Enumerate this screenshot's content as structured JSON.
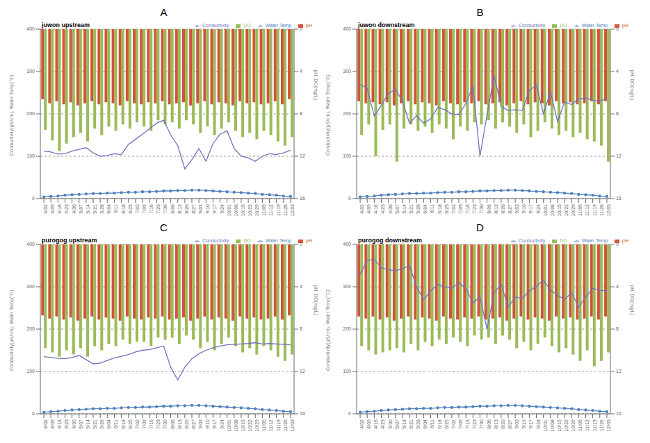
{
  "chart_data": [
    {
      "panel": "A",
      "type": "bar",
      "title": "juwon upstream",
      "ylabel": "Conductivity(µS/cm), Water Temp(°C)",
      "y2label": "pH, DO(mg/L)",
      "categories": [
        "4/02",
        "4/09",
        "4/16",
        "4/23",
        "4/30",
        "5/07",
        "5/14",
        "5/21",
        "5/28",
        "6/04",
        "6/11",
        "6/18",
        "6/25",
        "7/02",
        "7/09",
        "7/16",
        "7/23",
        "7/30",
        "8/06",
        "8/13",
        "8/20",
        "8/27",
        "9/03",
        "9/10",
        "9/17",
        "9/24",
        "10/01",
        "10/08",
        "10/15",
        "10/22",
        "10/29",
        "11/05",
        "11/12",
        "11/19",
        "11/26",
        "12/03"
      ],
      "ylim": [
        0,
        400
      ],
      "yticks": [
        0,
        100,
        200,
        300,
        400
      ],
      "y2lim": [
        0,
        16
      ],
      "y2ticks": [
        0,
        4,
        8,
        12,
        16
      ],
      "grid": true,
      "legend": "top-right",
      "series": [
        {
          "name": "pH",
          "type": "bar",
          "axis": "y2",
          "color": "#d2533b",
          "values": [
            6.6,
            7.0,
            6.8,
            7.1,
            6.9,
            7.2,
            7.0,
            6.8,
            7.1,
            6.9,
            7.0,
            7.2,
            6.8,
            7.0,
            7.1,
            6.9,
            7.0,
            6.8,
            7.1,
            7.0,
            6.9,
            7.2,
            7.0,
            6.8,
            7.1,
            6.9,
            7.0,
            7.2,
            6.8,
            7.0,
            6.9,
            7.1,
            7.0,
            6.8,
            7.1,
            6.6
          ]
        },
        {
          "name": "DO",
          "type": "bar",
          "axis": "y2",
          "color": "#9bbb59",
          "values": [
            9.5,
            10.5,
            11.5,
            10.8,
            10.2,
            9.8,
            10.6,
            9.4,
            10.0,
            9.2,
            9.6,
            9.0,
            9.4,
            8.8,
            9.2,
            9.6,
            8.6,
            9.0,
            8.8,
            9.4,
            8.6,
            9.0,
            9.8,
            9.2,
            10.0,
            9.4,
            8.8,
            9.6,
            10.2,
            9.8,
            10.4,
            9.6,
            10.0,
            10.6,
            11.0,
            10.2
          ]
        },
        {
          "name": "Water Temp",
          "type": "line",
          "color": "#4f81bd",
          "marker": "circle",
          "values": [
            4,
            5,
            6,
            8,
            9,
            10,
            11,
            12,
            12,
            13,
            13,
            14,
            15,
            15,
            16,
            16,
            17,
            18,
            18,
            19,
            19,
            20,
            20,
            19,
            18,
            17,
            16,
            15,
            14,
            13,
            12,
            10,
            9,
            8,
            6,
            5
          ]
        },
        {
          "name": "Conductivity",
          "type": "line",
          "color": "#7070c0",
          "marker": "none",
          "values": [
            112,
            110,
            105,
            106,
            112,
            116,
            120,
            108,
            100,
            102,
            106,
            104,
            128,
            140,
            152,
            165,
            178,
            185,
            150,
            125,
            70,
            92,
            118,
            88,
            130,
            152,
            160,
            118,
            100,
            96,
            88,
            100,
            106,
            104,
            108,
            114
          ]
        }
      ]
    },
    {
      "panel": "B",
      "type": "bar",
      "title": "juwon downstream",
      "ylabel": "Conductivity(µS/cm), Water Temp(°C)",
      "y2label": "pH, DO(mg/L)",
      "categories": [
        "4/02",
        "4/09",
        "4/16",
        "4/23",
        "4/30",
        "5/07",
        "5/14",
        "5/21",
        "5/28",
        "6/04",
        "6/11",
        "6/18",
        "6/25",
        "7/02",
        "7/09",
        "7/16",
        "7/23",
        "7/30",
        "8/06",
        "8/13",
        "8/20",
        "8/27",
        "9/03",
        "9/10",
        "9/17",
        "9/24",
        "10/01",
        "10/08",
        "10/15",
        "10/22",
        "10/29",
        "11/05",
        "11/12",
        "11/19",
        "11/26",
        "12/03"
      ],
      "ylim": [
        0,
        400
      ],
      "yticks": [
        0,
        100,
        200,
        300,
        400
      ],
      "y2lim": [
        0,
        16
      ],
      "y2ticks": [
        0,
        4,
        8,
        12,
        16
      ],
      "grid": true,
      "legend": "top-right",
      "series": [
        {
          "name": "pH",
          "type": "bar",
          "axis": "y2",
          "color": "#d2533b",
          "values": [
            6.8,
            7.0,
            6.9,
            7.1,
            6.9,
            7.2,
            7.0,
            6.8,
            7.1,
            6.9,
            7.0,
            7.2,
            6.8,
            7.0,
            7.1,
            6.9,
            7.0,
            6.8,
            7.1,
            7.0,
            6.9,
            7.2,
            7.0,
            6.8,
            7.1,
            6.9,
            7.0,
            7.2,
            6.8,
            7.0,
            6.9,
            7.1,
            7.0,
            6.8,
            7.1,
            6.8
          ]
        },
        {
          "name": "DO",
          "type": "bar",
          "axis": "y2",
          "color": "#9bbb59",
          "values": [
            10.0,
            9.0,
            12.0,
            9.5,
            9.0,
            12.5,
            9.4,
            9.0,
            9.6,
            9.2,
            9.8,
            9.0,
            9.4,
            10.4,
            9.2,
            9.6,
            8.8,
            9.0,
            8.6,
            9.4,
            8.8,
            9.2,
            9.8,
            9.0,
            10.2,
            9.6,
            8.8,
            9.4,
            10.0,
            9.6,
            10.2,
            9.8,
            10.4,
            10.6,
            11.0,
            12.5
          ]
        },
        {
          "name": "Water Temp",
          "type": "line",
          "color": "#4f81bd",
          "marker": "circle",
          "values": [
            4,
            5,
            6,
            8,
            9,
            10,
            11,
            12,
            12,
            13,
            13,
            14,
            15,
            15,
            16,
            16,
            17,
            18,
            18,
            19,
            19,
            20,
            20,
            19,
            18,
            17,
            16,
            15,
            14,
            13,
            12,
            10,
            9,
            8,
            6,
            5
          ]
        },
        {
          "name": "Conductivity",
          "type": "line",
          "color": "#7070c0",
          "marker": "none",
          "values": [
            270,
            260,
            195,
            220,
            248,
            258,
            230,
            178,
            196,
            178,
            188,
            215,
            210,
            200,
            198,
            225,
            265,
            100,
            198,
            290,
            218,
            208,
            210,
            208,
            255,
            268,
            200,
            252,
            182,
            228,
            222,
            235,
            238,
            232,
            230,
            236
          ]
        }
      ]
    },
    {
      "panel": "C",
      "type": "bar",
      "title": "purogog upstream",
      "ylabel": "Conductivity(µS/cm), Water Temp(°C)",
      "y2label": "pH, DO(mg/L)",
      "categories": [
        "4/02",
        "4/09",
        "4/16",
        "4/23",
        "4/30",
        "5/07",
        "5/14",
        "5/21",
        "5/28",
        "6/04",
        "6/11",
        "6/18",
        "6/25",
        "7/02",
        "7/09",
        "7/16",
        "7/23",
        "7/30",
        "8/06",
        "8/13",
        "8/20",
        "8/27",
        "9/03",
        "9/10",
        "9/17",
        "9/24",
        "10/01",
        "10/08",
        "10/15",
        "10/22",
        "10/29",
        "11/05",
        "11/12",
        "11/19",
        "11/26",
        "12/03"
      ],
      "ylim": [
        0,
        400
      ],
      "yticks": [
        0,
        100,
        200,
        300,
        400
      ],
      "y2lim": [
        0,
        16
      ],
      "y2ticks": [
        0,
        4,
        8,
        12,
        16
      ],
      "grid": true,
      "legend": "top-right",
      "series": [
        {
          "name": "pH",
          "type": "bar",
          "axis": "y2",
          "color": "#d2533b",
          "values": [
            6.7,
            7.0,
            6.8,
            7.1,
            6.9,
            7.2,
            7.0,
            6.8,
            7.1,
            6.9,
            7.0,
            7.2,
            6.8,
            7.0,
            7.1,
            6.9,
            7.0,
            6.8,
            7.1,
            7.0,
            6.9,
            7.2,
            7.0,
            6.8,
            7.1,
            6.9,
            7.0,
            7.2,
            6.8,
            7.0,
            6.9,
            7.1,
            7.0,
            6.8,
            7.1,
            6.7
          ]
        },
        {
          "name": "DO",
          "type": "bar",
          "axis": "y2",
          "color": "#9bbb59",
          "values": [
            9.8,
            10.2,
            10.6,
            10.0,
            10.4,
            9.8,
            10.6,
            9.6,
            10.0,
            9.4,
            9.6,
            9.0,
            9.4,
            9.2,
            9.2,
            9.6,
            8.8,
            9.0,
            8.8,
            9.4,
            8.6,
            9.0,
            9.8,
            9.2,
            10.0,
            9.4,
            8.8,
            9.6,
            10.2,
            9.8,
            10.4,
            9.6,
            10.0,
            10.6,
            11.0,
            10.4
          ]
        },
        {
          "name": "Water Temp",
          "type": "line",
          "color": "#4f81bd",
          "marker": "circle",
          "values": [
            4,
            5,
            6,
            8,
            9,
            10,
            11,
            12,
            12,
            13,
            13,
            14,
            15,
            15,
            16,
            16,
            17,
            18,
            18,
            19,
            19,
            20,
            20,
            19,
            18,
            17,
            16,
            15,
            14,
            13,
            12,
            10,
            9,
            8,
            6,
            5
          ]
        },
        {
          "name": "Conductivity",
          "type": "line",
          "color": "#7070c0",
          "marker": "none",
          "values": [
            135,
            133,
            131,
            130,
            133,
            138,
            128,
            118,
            120,
            126,
            132,
            136,
            140,
            146,
            150,
            152,
            156,
            160,
            110,
            80,
            110,
            130,
            142,
            150,
            156,
            160,
            163,
            164,
            165,
            166,
            168,
            165,
            166,
            165,
            164,
            163
          ]
        }
      ]
    },
    {
      "panel": "D",
      "type": "bar",
      "title": "purogog downstream",
      "ylabel": "Conductivity(µS/cm), Water Temp(°C)",
      "y2label": "pH, DO(mg/L)",
      "categories": [
        "4/02",
        "4/09",
        "4/16",
        "4/23",
        "4/30",
        "5/07",
        "5/14",
        "5/21",
        "5/28",
        "6/04",
        "6/11",
        "6/18",
        "6/25",
        "7/02",
        "7/09",
        "7/16",
        "7/23",
        "7/30",
        "8/06",
        "8/13",
        "8/20",
        "8/27",
        "9/03",
        "9/10",
        "9/17",
        "9/24",
        "10/01",
        "10/08",
        "10/15",
        "10/22",
        "10/29",
        "11/05",
        "11/12",
        "11/19",
        "11/26",
        "12/03"
      ],
      "ylim": [
        0,
        400
      ],
      "yticks": [
        0,
        100,
        200,
        300,
        400
      ],
      "y2lim": [
        0,
        16
      ],
      "y2ticks": [
        0,
        4,
        8,
        12,
        16
      ],
      "grid": true,
      "legend": "top-right",
      "series": [
        {
          "name": "pH",
          "type": "bar",
          "axis": "y2",
          "color": "#d2533b",
          "values": [
            6.8,
            7.0,
            6.8,
            7.1,
            6.9,
            7.2,
            7.0,
            6.8,
            7.1,
            6.9,
            7.0,
            7.2,
            6.8,
            7.0,
            7.1,
            6.9,
            7.0,
            6.8,
            7.1,
            7.0,
            6.9,
            7.2,
            7.0,
            6.8,
            7.1,
            6.9,
            7.0,
            7.2,
            6.8,
            7.0,
            6.9,
            7.1,
            7.0,
            6.8,
            7.1,
            6.8
          ]
        },
        {
          "name": "DO",
          "type": "bar",
          "axis": "y2",
          "color": "#9bbb59",
          "values": [
            9.6,
            10.0,
            10.4,
            10.2,
            10.0,
            9.8,
            10.2,
            9.4,
            10.0,
            9.2,
            9.6,
            9.0,
            9.4,
            8.8,
            9.2,
            9.6,
            8.6,
            9.0,
            8.8,
            9.4,
            8.6,
            9.0,
            9.8,
            9.2,
            10.0,
            9.4,
            8.8,
            9.6,
            10.2,
            9.8,
            10.4,
            11.0,
            10.0,
            11.5,
            11.0,
            10.2
          ]
        },
        {
          "name": "Water Temp",
          "type": "line",
          "color": "#4f81bd",
          "marker": "circle",
          "values": [
            4,
            5,
            6,
            8,
            9,
            10,
            11,
            12,
            12,
            13,
            13,
            14,
            15,
            15,
            16,
            16,
            17,
            18,
            18,
            19,
            19,
            20,
            20,
            19,
            18,
            17,
            16,
            15,
            14,
            13,
            12,
            10,
            9,
            8,
            6,
            5
          ]
        },
        {
          "name": "Conductivity",
          "type": "line",
          "color": "#7070c0",
          "marker": "none",
          "values": [
            330,
            362,
            365,
            345,
            340,
            338,
            342,
            350,
            300,
            270,
            290,
            306,
            300,
            296,
            310,
            296,
            262,
            276,
            200,
            286,
            306,
            252,
            276,
            272,
            290,
            300,
            316,
            292,
            280,
            270,
            286,
            252,
            276,
            296,
            292,
            290
          ]
        }
      ]
    }
  ]
}
